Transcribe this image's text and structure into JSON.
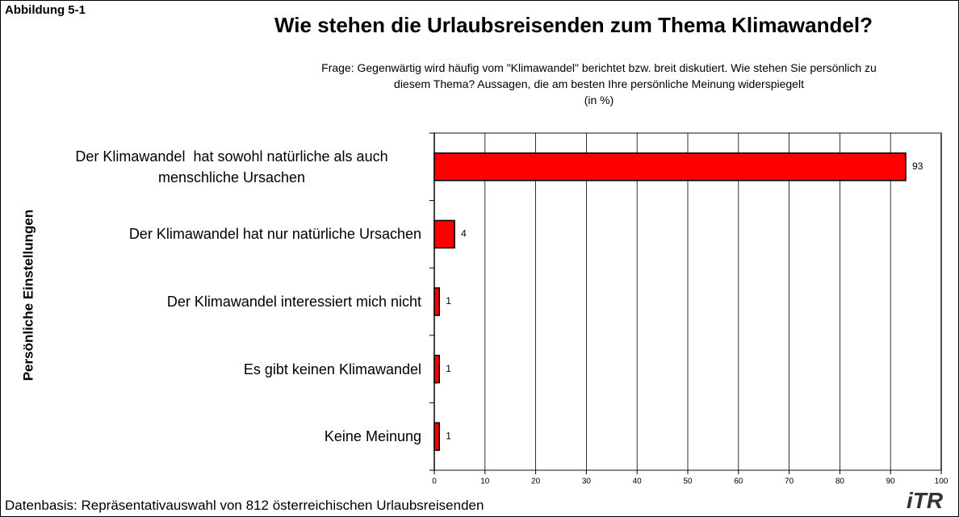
{
  "chart_data": {
    "type": "barh",
    "label": "Abbildung 5-1",
    "title": "Wie stehen die Urlaubsreisenden zum Thema Klimawandel?",
    "subtitle": [
      "Frage: Gegenwärtig wird häufig vom \"Klimawandel\" berichtet bzw. breit diskutiert. Wie stehen Sie persönlich zu",
      "diesem Thema? Aussagen, die am besten Ihre persönliche Meinung widerspiegelt",
      "(in %)"
    ],
    "y_label": "Persönliche Einstellungen",
    "categories": [
      "Der Klimawandel  hat sowohl natürliche als auch menschliche Ursachen",
      "Der Klimawandel hat nur natürliche Ursachen",
      "Der Klimawandel interessiert mich nicht",
      "Es gibt keinen Klimawandel",
      "Keine Meinung"
    ],
    "values": [
      93,
      4,
      1,
      1,
      1
    ],
    "color": "#ff0000",
    "xlim": [
      0,
      100
    ],
    "xticks": [
      0,
      10,
      20,
      30,
      40,
      50,
      60,
      70,
      80,
      90,
      100
    ],
    "grid": true,
    "footnote": "Datenbasis: Repräsentativauswahl von 812 österreichischen Urlaubsreisenden",
    "logo": "iTR"
  }
}
